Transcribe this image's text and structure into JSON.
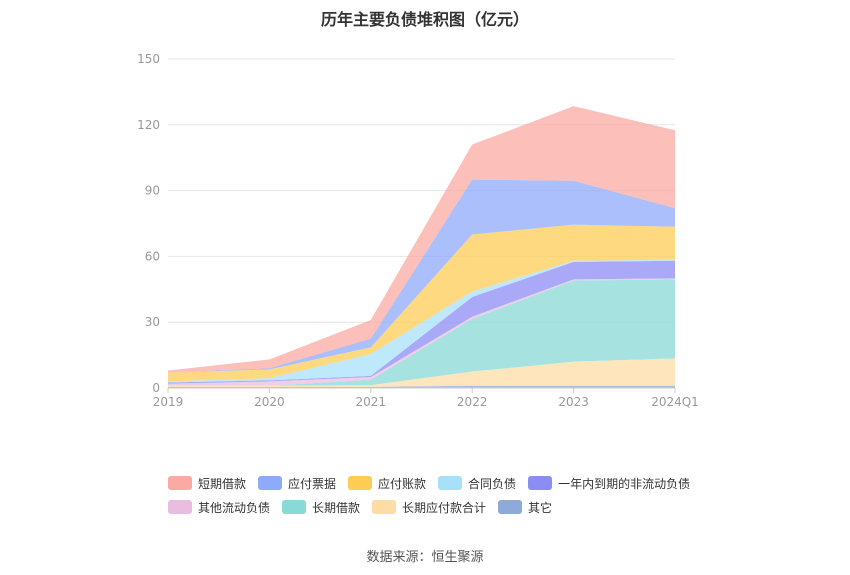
{
  "chart_data": {
    "type": "area",
    "title": "历年主要负债堆积图（亿元）",
    "categories": [
      "2019",
      "2020",
      "2021",
      "2022",
      "2023",
      "2024Q1"
    ],
    "ylim": [
      0,
      150
    ],
    "yticks": [
      "0",
      "30",
      "60",
      "90",
      "120",
      "150"
    ],
    "stacked": true,
    "grid": true,
    "legend_position": "bottom",
    "series": [
      {
        "name": "其它",
        "color": "#8eaad8",
        "values": [
          0.5,
          0.5,
          0.5,
          1.0,
          1.0,
          1.0
        ]
      },
      {
        "name": "长期应付款合计",
        "color": "#fddca6",
        "values": [
          0.5,
          0.5,
          0.8,
          6.5,
          11.0,
          12.5
        ]
      },
      {
        "name": "长期借款",
        "color": "#88dad6",
        "values": [
          0.0,
          0.0,
          2.5,
          24.0,
          37.0,
          36.0
        ]
      },
      {
        "name": "其他流动负债",
        "color": "#e9bde0",
        "values": [
          1.0,
          2.0,
          1.2,
          1.0,
          0.5,
          0.5
        ]
      },
      {
        "name": "一年内到期的非流动负债",
        "color": "#8c8cf5",
        "values": [
          0.5,
          0.5,
          0.5,
          9.0,
          8.0,
          8.0
        ]
      },
      {
        "name": "合同负债",
        "color": "#a8e0fa",
        "values": [
          0.5,
          1.0,
          10.0,
          2.5,
          0.5,
          0.5
        ]
      },
      {
        "name": "应付账款",
        "color": "#ffcc55",
        "values": [
          4.0,
          4.0,
          3.0,
          26.0,
          16.5,
          15.0
        ]
      },
      {
        "name": "应付票据",
        "color": "#8eaafb",
        "values": [
          0.0,
          0.5,
          4.0,
          25.0,
          20.0,
          8.5
        ]
      },
      {
        "name": "短期借款",
        "color": "#fba9a3",
        "values": [
          1.0,
          4.0,
          8.5,
          16.0,
          34.0,
          35.5
        ]
      }
    ]
  },
  "legend": [
    {
      "label": "短期借款",
      "color": "#fba9a3"
    },
    {
      "label": "应付票据",
      "color": "#8eaafb"
    },
    {
      "label": "应付账款",
      "color": "#ffcc55"
    },
    {
      "label": "合同负债",
      "color": "#a8e0fa"
    },
    {
      "label": "一年内到期的非流动负债",
      "color": "#8c8cf5"
    },
    {
      "label": "其他流动负债",
      "color": "#e9bde0"
    },
    {
      "label": "长期借款",
      "color": "#88dad6"
    },
    {
      "label": "长期应付款合计",
      "color": "#fddca6"
    },
    {
      "label": "其它",
      "color": "#8eaad8"
    }
  ],
  "source": "数据来源：恒生聚源"
}
